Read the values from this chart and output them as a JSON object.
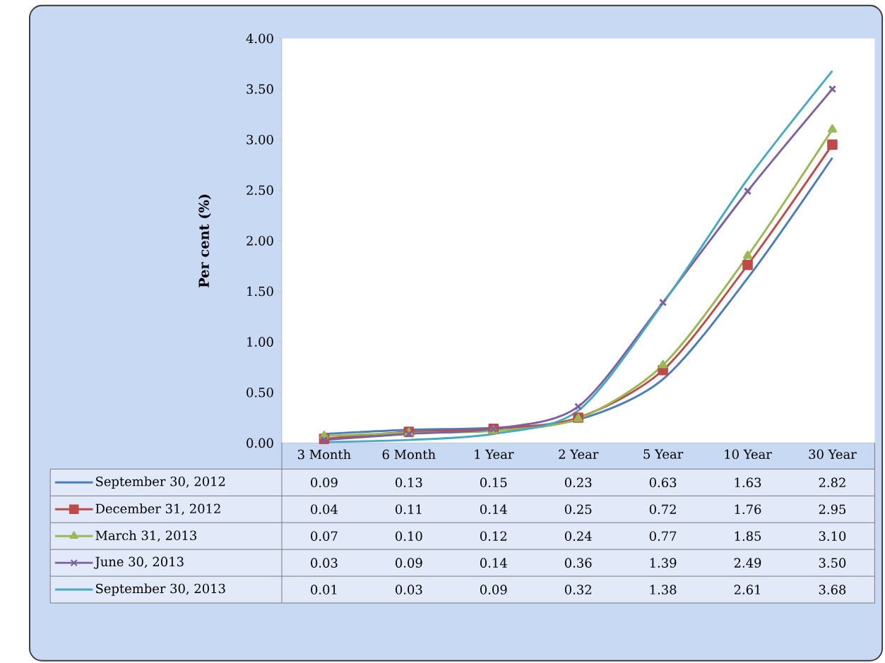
{
  "chart_data": {
    "type": "line",
    "ylabel": "Per cent (%)",
    "categories": [
      "3 Month",
      "6 Month",
      "1 Year",
      "2 Year",
      "5 Year",
      "10 Year",
      "30 Year"
    ],
    "ylim": [
      0,
      4
    ],
    "yticks": [
      {
        "value": 0,
        "label": "0.00"
      },
      {
        "value": 0.5,
        "label": "0.50"
      },
      {
        "value": 1,
        "label": "1.00"
      },
      {
        "value": 1.5,
        "label": "1.50"
      },
      {
        "value": 2,
        "label": "2.00"
      },
      {
        "value": 2.5,
        "label": "2.50"
      },
      {
        "value": 3,
        "label": "3.00"
      },
      {
        "value": 3.5,
        "label": "3.50"
      },
      {
        "value": 4,
        "label": "4.00"
      }
    ],
    "legend": "bottom",
    "line_style": "solid",
    "series": [
      {
        "name": "September 30, 2012",
        "color": "#4a7ebb",
        "marker": "none",
        "values": [
          0.09,
          0.13,
          0.15,
          0.23,
          0.63,
          1.63,
          2.82
        ],
        "value_labels": [
          "0.09",
          "0.13",
          "0.15",
          "0.23",
          "0.63",
          "1.63",
          "2.82"
        ]
      },
      {
        "name": "December 31, 2012",
        "color": "#be4b48",
        "marker": "square",
        "values": [
          0.04,
          0.11,
          0.14,
          0.25,
          0.72,
          1.76,
          2.95
        ],
        "value_labels": [
          "0.04",
          "0.11",
          "0.14",
          "0.25",
          "0.72",
          "1.76",
          "2.95"
        ]
      },
      {
        "name": "March 31, 2013",
        "color": "#98b954",
        "marker": "triangle",
        "values": [
          0.07,
          0.1,
          0.12,
          0.24,
          0.77,
          1.85,
          3.1
        ],
        "value_labels": [
          "0.07",
          "0.10",
          "0.12",
          "0.24",
          "0.77",
          "1.85",
          "3.10"
        ]
      },
      {
        "name": "June 30, 2013",
        "color": "#7d60a0",
        "marker": "cross",
        "values": [
          0.03,
          0.09,
          0.14,
          0.36,
          1.39,
          2.49,
          3.5
        ],
        "value_labels": [
          "0.03",
          "0.09",
          "0.14",
          "0.36",
          "1.39",
          "2.49",
          "3.50"
        ]
      },
      {
        "name": "September 30, 2013",
        "color": "#46aac5",
        "marker": "none",
        "values": [
          0.01,
          0.03,
          0.09,
          0.32,
          1.38,
          2.61,
          3.68
        ],
        "value_labels": [
          "0.01",
          "0.03",
          "0.09",
          "0.32",
          "1.38",
          "2.61",
          "3.68"
        ]
      }
    ]
  }
}
